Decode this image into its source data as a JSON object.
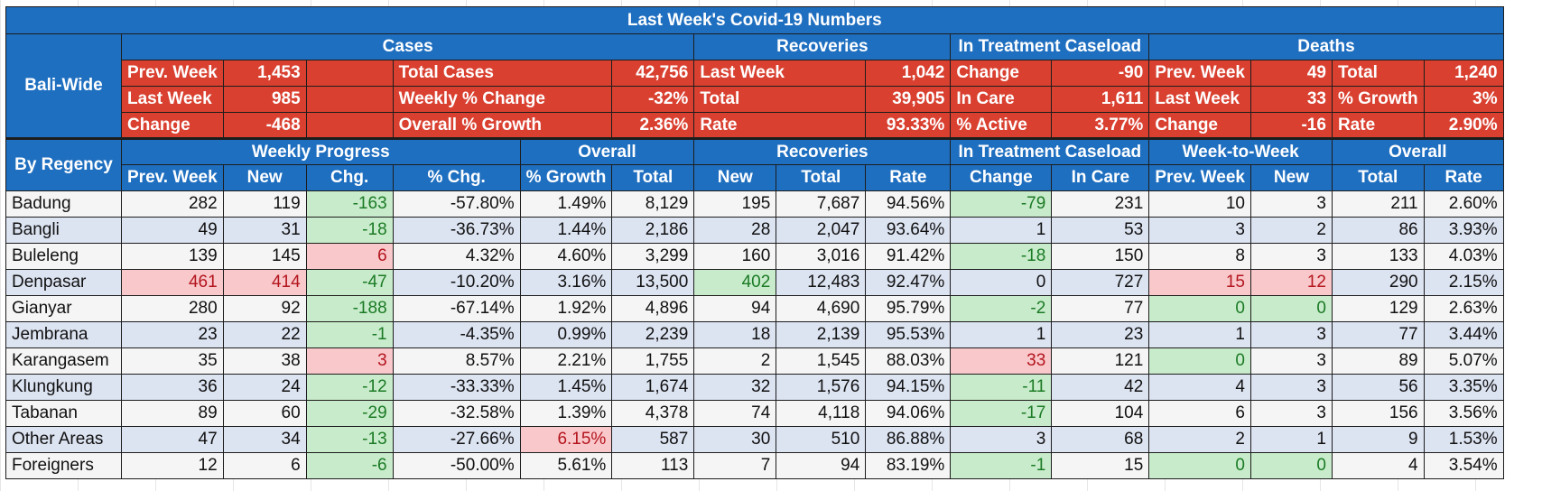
{
  "title": "Last Week's Covid-19 Numbers",
  "sections": {
    "bali_wide": "Bali-Wide",
    "cases": "Cases",
    "recoveries": "Recoveries",
    "in_treatment": "In Treatment Caseload",
    "deaths": "Deaths",
    "by_regency": "By Regency",
    "weekly_progress": "Weekly Progress",
    "overall": "Overall",
    "recoveries2": "Recoveries",
    "in_treatment2": "In Treatment Caseload",
    "week_to_week": "Week-to-Week",
    "overall2": "Overall"
  },
  "summary": {
    "rows": [
      [
        "Prev. Week",
        "1,453",
        "",
        "Total Cases",
        "42,756",
        "Last Week",
        "1,042",
        "Change",
        "-90",
        "Prev. Week",
        "49",
        "Total",
        "1,240"
      ],
      [
        "Last Week",
        "985",
        "",
        "Weekly % Change",
        "-32%",
        "Total",
        "39,905",
        "In Care",
        "1,611",
        "Last Week",
        "33",
        "% Growth",
        "3%"
      ],
      [
        "Change",
        "-468",
        "",
        "Overall % Growth",
        "2.36%",
        "Rate",
        "93.33%",
        "% Active",
        "3.77%",
        "Change",
        "-16",
        "Rate",
        "2.90%"
      ]
    ]
  },
  "columns": [
    "Prev. Week",
    "New",
    "Chg.",
    "% Chg.",
    "% Growth",
    "Total",
    "New",
    "Total",
    "Rate",
    "Change",
    "In Care",
    "Prev. Week",
    "New",
    "Total",
    "Rate"
  ],
  "regencies": [
    {
      "name": "Badung",
      "cells": [
        "282",
        "119",
        "-163",
        "-57.80%",
        "1.49%",
        "8,129",
        "195",
        "7,687",
        "94.56%",
        "-79",
        "231",
        "10",
        "3",
        "211",
        "2.60%"
      ],
      "hl": {
        "2": "g",
        "9": "g"
      }
    },
    {
      "name": "Bangli",
      "cells": [
        "49",
        "31",
        "-18",
        "-36.73%",
        "1.44%",
        "2,186",
        "28",
        "2,047",
        "93.64%",
        "1",
        "53",
        "3",
        "2",
        "86",
        "3.93%"
      ],
      "hl": {
        "2": "g"
      }
    },
    {
      "name": "Buleleng",
      "cells": [
        "139",
        "145",
        "6",
        "4.32%",
        "4.60%",
        "3,299",
        "160",
        "3,016",
        "91.42%",
        "-18",
        "150",
        "8",
        "3",
        "133",
        "4.03%"
      ],
      "hl": {
        "2": "p",
        "9": "g"
      }
    },
    {
      "name": "Denpasar",
      "cells": [
        "461",
        "414",
        "-47",
        "-10.20%",
        "3.16%",
        "13,500",
        "402",
        "12,483",
        "92.47%",
        "0",
        "727",
        "15",
        "12",
        "290",
        "2.15%"
      ],
      "hl": {
        "0": "p",
        "1": "p",
        "2": "g",
        "6": "g",
        "11": "p",
        "12": "p"
      }
    },
    {
      "name": "Gianyar",
      "cells": [
        "280",
        "92",
        "-188",
        "-67.14%",
        "1.92%",
        "4,896",
        "94",
        "4,690",
        "95.79%",
        "-2",
        "77",
        "0",
        "0",
        "129",
        "2.63%"
      ],
      "hl": {
        "2": "g",
        "9": "g",
        "11": "g",
        "12": "g"
      }
    },
    {
      "name": "Jembrana",
      "cells": [
        "23",
        "22",
        "-1",
        "-4.35%",
        "0.99%",
        "2,239",
        "18",
        "2,139",
        "95.53%",
        "1",
        "23",
        "1",
        "3",
        "77",
        "3.44%"
      ],
      "hl": {
        "2": "g"
      }
    },
    {
      "name": "Karangasem",
      "cells": [
        "35",
        "38",
        "3",
        "8.57%",
        "2.21%",
        "1,755",
        "2",
        "1,545",
        "88.03%",
        "33",
        "121",
        "0",
        "3",
        "89",
        "5.07%"
      ],
      "hl": {
        "2": "p",
        "9": "p",
        "11": "g"
      }
    },
    {
      "name": "Klungkung",
      "cells": [
        "36",
        "24",
        "-12",
        "-33.33%",
        "1.45%",
        "1,674",
        "32",
        "1,576",
        "94.15%",
        "-11",
        "42",
        "4",
        "3",
        "56",
        "3.35%"
      ],
      "hl": {
        "2": "g",
        "9": "g"
      }
    },
    {
      "name": "Tabanan",
      "cells": [
        "89",
        "60",
        "-29",
        "-32.58%",
        "1.39%",
        "4,378",
        "74",
        "4,118",
        "94.06%",
        "-17",
        "104",
        "6",
        "3",
        "156",
        "3.56%"
      ],
      "hl": {
        "2": "g",
        "9": "g"
      }
    },
    {
      "name": "Other Areas",
      "cells": [
        "47",
        "34",
        "-13",
        "-27.66%",
        "6.15%",
        "587",
        "30",
        "510",
        "86.88%",
        "3",
        "68",
        "2",
        "1",
        "9",
        "1.53%"
      ],
      "hl": {
        "2": "g",
        "4": "p"
      }
    },
    {
      "name": "Foreigners",
      "cells": [
        "12",
        "6",
        "-6",
        "-50.00%",
        "5.61%",
        "113",
        "7",
        "94",
        "83.19%",
        "-1",
        "15",
        "0",
        "0",
        "4",
        "3.54%"
      ],
      "hl": {
        "2": "g",
        "9": "g",
        "11": "g",
        "12": "g"
      }
    }
  ],
  "colors": {
    "header_blue": "#1f6fc0",
    "summary_red": "#d94030",
    "good_green": "#c8eccb",
    "bad_pink": "#f9c8cb"
  }
}
